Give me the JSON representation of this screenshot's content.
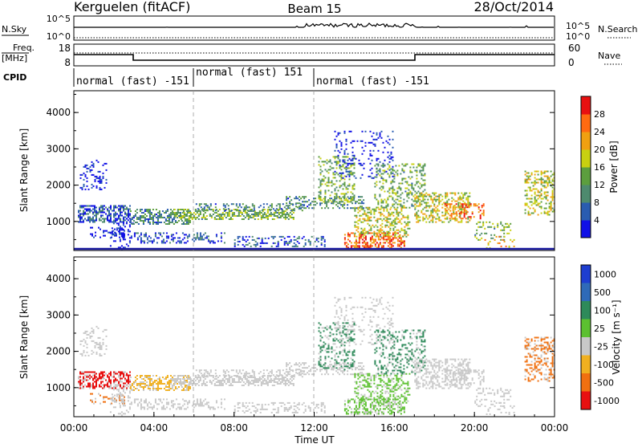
{
  "header": {
    "station": "Kerguelen (fitACF)",
    "beam": "Beam 15",
    "date": "28/Oct/2014"
  },
  "status_panels": {
    "nsky": {
      "label": "N.Sky",
      "left_ticks": [
        "10^5",
        "10^0"
      ],
      "right_ticks": [
        "10^5",
        "10^0"
      ],
      "right_label": "N.Search"
    },
    "freq": {
      "label_line1": "Freq.",
      "label_line2": "[MHz]",
      "left_ticks": [
        "18",
        "8"
      ],
      "right_ticks": [
        "60",
        "0"
      ],
      "right_label": "Nave"
    },
    "cpid": {
      "label": "CPID",
      "segments": [
        {
          "text": "normal (fast) -151",
          "start_hour": 0
        },
        {
          "text": "normal (fast) 151",
          "start_hour": 6
        },
        {
          "text": "normal (fast) -151",
          "start_hour": 12
        }
      ]
    }
  },
  "chart_data": [
    {
      "type": "heatmap",
      "name": "power",
      "ylabel": "Slant Range [km]",
      "xlabel": "",
      "xlim": [
        0,
        24
      ],
      "ylim": [
        200,
        4600
      ],
      "yticks": [
        "1000",
        "2000",
        "3000",
        "4000"
      ],
      "ytick_values": [
        1000,
        2000,
        3000,
        4000
      ],
      "colorbar": {
        "label": "Power [dB]",
        "ticks": [
          "4",
          "8",
          "12",
          "16",
          "20",
          "24",
          "28"
        ],
        "tick_values": [
          4,
          8,
          12,
          16,
          20,
          24,
          28
        ],
        "range": [
          0,
          32
        ],
        "colors": [
          "#1010e6",
          "#2a5cb0",
          "#4e8a6e",
          "#5c9e3e",
          "#c8d010",
          "#f0a010",
          "#ff6a10",
          "#e81010"
        ]
      }
    },
    {
      "type": "heatmap",
      "name": "velocity",
      "ylabel": "Slant Range [km]",
      "xlabel": "Time UT",
      "xlim": [
        0,
        24
      ],
      "ylim": [
        200,
        4600
      ],
      "yticks": [
        "1000",
        "2000",
        "3000",
        "4000"
      ],
      "ytick_values": [
        1000,
        2000,
        3000,
        4000
      ],
      "xticks": [
        "00:00",
        "04:00",
        "08:00",
        "12:00",
        "16:00",
        "20:00",
        "00:00"
      ],
      "xtick_values": [
        0,
        4,
        8,
        12,
        16,
        20,
        24
      ],
      "colorbar": {
        "label": "Velocity [m s⁻¹]",
        "ticks": [
          "1000",
          "500",
          "100",
          "25",
          "-25",
          "-100",
          "-500",
          "-1000"
        ],
        "colors": [
          "#1e3ed0",
          "#2f6ab8",
          "#2e8a5a",
          "#5cc030",
          "#c8c8c8",
          "#f0b020",
          "#f07010",
          "#e81010"
        ]
      }
    }
  ]
}
